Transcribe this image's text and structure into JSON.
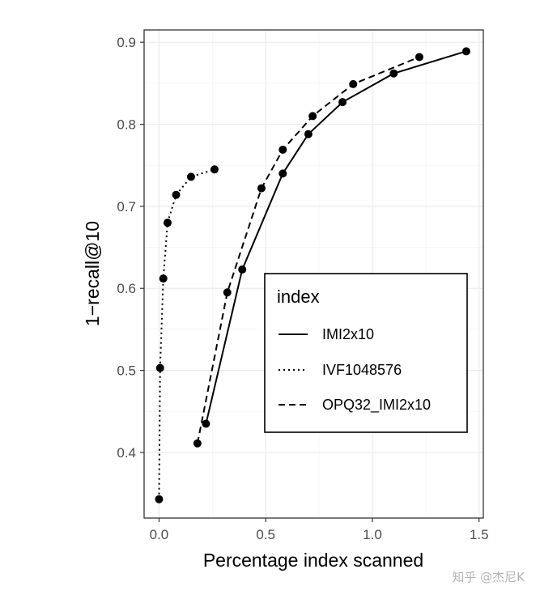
{
  "chart_data": {
    "type": "line",
    "title": "",
    "xlabel": "Percentage index scanned",
    "ylabel": "1−recall@10",
    "xlim": [
      -0.07,
      1.52
    ],
    "ylim": [
      0.32,
      0.915
    ],
    "x_ticks": [
      0.0,
      0.5,
      1.0,
      1.5
    ],
    "x_tick_labels": [
      "0.0",
      "0.5",
      "1.0",
      "1.5"
    ],
    "y_ticks": [
      0.4,
      0.5,
      0.6,
      0.7,
      0.8,
      0.9
    ],
    "y_tick_labels": [
      "0.4",
      "0.5",
      "0.6",
      "0.7",
      "0.8",
      "0.9"
    ],
    "grid": true,
    "legend": {
      "title": "index",
      "placement": "center-right"
    },
    "series": [
      {
        "name": "IMI2x10",
        "linetype": "solid",
        "points": [
          [
            0.22,
            0.435
          ],
          [
            0.39,
            0.623
          ],
          [
            0.58,
            0.74
          ],
          [
            0.7,
            0.788
          ],
          [
            0.86,
            0.827
          ],
          [
            1.1,
            0.862
          ],
          [
            1.44,
            0.889
          ]
        ]
      },
      {
        "name": "IVF1048576",
        "linetype": "dotted",
        "points": [
          [
            0.0,
            0.343
          ],
          [
            0.005,
            0.503
          ],
          [
            0.02,
            0.612
          ],
          [
            0.04,
            0.68
          ],
          [
            0.08,
            0.714
          ],
          [
            0.15,
            0.736
          ],
          [
            0.26,
            0.745
          ]
        ]
      },
      {
        "name": "OPQ32_IMI2x10",
        "linetype": "dashed",
        "points": [
          [
            0.18,
            0.411
          ],
          [
            0.32,
            0.595
          ],
          [
            0.48,
            0.722
          ],
          [
            0.58,
            0.769
          ],
          [
            0.72,
            0.81
          ],
          [
            0.91,
            0.849
          ],
          [
            1.22,
            0.882
          ]
        ]
      }
    ]
  },
  "watermark": "知乎 @杰尼K"
}
